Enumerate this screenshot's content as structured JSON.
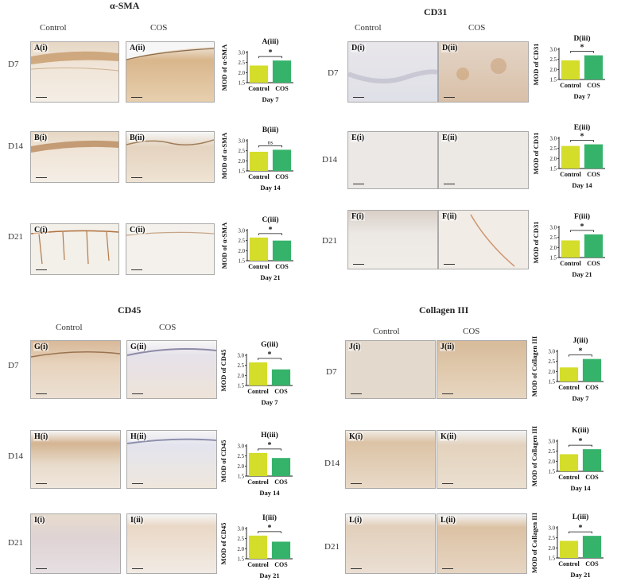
{
  "colors": {
    "control": "#d4dd2a",
    "cos": "#36b36a"
  },
  "sections": [
    {
      "id": "asma",
      "title": "α-SMA",
      "col_labels": [
        "Control",
        "COS"
      ],
      "row_labels": [
        "D7",
        "D14",
        "D21"
      ]
    },
    {
      "id": "cd31",
      "title": "CD31",
      "col_labels": [
        "Control",
        "COS"
      ],
      "row_labels": [
        "D7",
        "D14",
        "D21"
      ]
    },
    {
      "id": "cd45",
      "title": "CD45",
      "col_labels": [
        "Control",
        "COS"
      ],
      "row_labels": [
        "D7",
        "D14",
        "D21"
      ]
    },
    {
      "id": "col3",
      "title": "Collagen III",
      "col_labels": [
        "Control",
        "COS"
      ],
      "row_labels": [
        "D7",
        "D14",
        "D21"
      ]
    }
  ],
  "panel_labels": {
    "A": [
      "A(i)",
      "A(ii)"
    ],
    "B": [
      "B(i)",
      "B(ii)"
    ],
    "C": [
      "C(i)",
      "C(ii)"
    ],
    "D": [
      "D(i)",
      "D(ii)"
    ],
    "E": [
      "E(i)",
      "E(ii)"
    ],
    "F": [
      "F(i)",
      "F(ii)"
    ],
    "G": [
      "G(i)",
      "G(ii)"
    ],
    "H": [
      "H(i)",
      "H(ii)"
    ],
    "I": [
      "I(i)",
      "I(ii)"
    ],
    "J": [
      "J(i)",
      "J(ii)"
    ],
    "K": [
      "K(i)",
      "K(ii)"
    ],
    "L": [
      "L(i)",
      "L(ii)"
    ]
  },
  "chart_data": [
    {
      "id": "A",
      "type": "bar",
      "title": "A(iii)",
      "ylabel": "MOD of α-SMA",
      "xlabel": "Day 7",
      "categories": [
        "Control",
        "COS"
      ],
      "values": [
        2.35,
        2.6
      ],
      "ylim": [
        1.5,
        3.0
      ],
      "yticks": [
        "1.5",
        "2.0",
        "2.5",
        "3.0"
      ],
      "significance": "*"
    },
    {
      "id": "B",
      "type": "bar",
      "title": "B(iii)",
      "ylabel": "MOD of α-SMA",
      "xlabel": "Day 14",
      "categories": [
        "Control",
        "COS"
      ],
      "values": [
        2.45,
        2.55
      ],
      "ylim": [
        1.5,
        3.0
      ],
      "yticks": [
        "1.5",
        "2.0",
        "2.5",
        "3.0"
      ],
      "significance": "ns"
    },
    {
      "id": "C",
      "type": "bar",
      "title": "C(iii)",
      "ylabel": "MOD of α-SMA",
      "xlabel": "Day 21",
      "categories": [
        "Control",
        "COS"
      ],
      "values": [
        2.65,
        2.5
      ],
      "ylim": [
        1.5,
        3.0
      ],
      "yticks": [
        "1.5",
        "2.0",
        "2.5",
        "3.0"
      ],
      "significance": "*"
    },
    {
      "id": "D",
      "type": "bar",
      "title": "D(iii)",
      "ylabel": "MOD of CD31",
      "xlabel": "Day 7",
      "categories": [
        "Control",
        "COS"
      ],
      "values": [
        2.45,
        2.7
      ],
      "ylim": [
        1.5,
        3.0
      ],
      "yticks": [
        "1.5",
        "2.0",
        "2.5",
        "3.0"
      ],
      "significance": "*"
    },
    {
      "id": "E",
      "type": "bar",
      "title": "E(iii)",
      "ylabel": "MOD of CD31",
      "xlabel": "Day 14",
      "categories": [
        "Control",
        "COS"
      ],
      "values": [
        2.62,
        2.7
      ],
      "ylim": [
        1.5,
        3.0
      ],
      "yticks": [
        "1.5",
        "2.0",
        "2.5",
        "3.0"
      ],
      "significance": "*"
    },
    {
      "id": "F",
      "type": "bar",
      "title": "F(iii)",
      "ylabel": "MOD of CD31",
      "xlabel": "Day 21",
      "categories": [
        "Control",
        "COS"
      ],
      "values": [
        2.35,
        2.65
      ],
      "ylim": [
        1.5,
        3.0
      ],
      "yticks": [
        "1.5",
        "2.0",
        "2.5",
        "3.0"
      ],
      "significance": "*"
    },
    {
      "id": "G",
      "type": "bar",
      "title": "G(iii)",
      "ylabel": "MOD of CD45",
      "xlabel": "Day 7",
      "categories": [
        "Control",
        "COS"
      ],
      "values": [
        2.65,
        2.3
      ],
      "ylim": [
        1.5,
        3.0
      ],
      "yticks": [
        "1.5",
        "2.0",
        "2.5",
        "3.0"
      ],
      "significance": "*"
    },
    {
      "id": "H",
      "type": "bar",
      "title": "H(iii)",
      "ylabel": "MOD of CD45",
      "xlabel": "Day 14",
      "categories": [
        "Control",
        "COS"
      ],
      "values": [
        2.65,
        2.4
      ],
      "ylim": [
        1.5,
        3.0
      ],
      "yticks": [
        "1.5",
        "2.0",
        "2.5",
        "3.0"
      ],
      "significance": "*"
    },
    {
      "id": "I",
      "type": "bar",
      "title": "I(iii)",
      "ylabel": "MOD of CD45",
      "xlabel": "Day 21",
      "categories": [
        "Control",
        "COS"
      ],
      "values": [
        2.65,
        2.35
      ],
      "ylim": [
        1.5,
        3.0
      ],
      "yticks": [
        "1.5",
        "2.0",
        "2.5",
        "3.0"
      ],
      "significance": "*"
    },
    {
      "id": "J",
      "type": "bar",
      "title": "J(iii)",
      "ylabel": "MOD of Collagen III",
      "xlabel": "Day 7",
      "categories": [
        "Control",
        "COS"
      ],
      "values": [
        2.2,
        2.62
      ],
      "ylim": [
        1.5,
        3.0
      ],
      "yticks": [
        "1.5",
        "2.0",
        "2.5",
        "3.0"
      ],
      "significance": "*"
    },
    {
      "id": "K",
      "type": "bar",
      "title": "K(iii)",
      "ylabel": "MOD of Collagen III",
      "xlabel": "Day 14",
      "categories": [
        "Control",
        "COS"
      ],
      "values": [
        2.35,
        2.6
      ],
      "ylim": [
        1.5,
        3.0
      ],
      "yticks": [
        "1.5",
        "2.0",
        "2.5",
        "3.0"
      ],
      "significance": "*"
    },
    {
      "id": "L",
      "type": "bar",
      "title": "L(iii)",
      "ylabel": "MOD of Collagen III",
      "xlabel": "Day 21",
      "categories": [
        "Control",
        "COS"
      ],
      "values": [
        2.35,
        2.6
      ],
      "ylim": [
        1.5,
        3.0
      ],
      "yticks": [
        "1.5",
        "2.0",
        "2.5",
        "3.0"
      ],
      "significance": "*"
    }
  ]
}
